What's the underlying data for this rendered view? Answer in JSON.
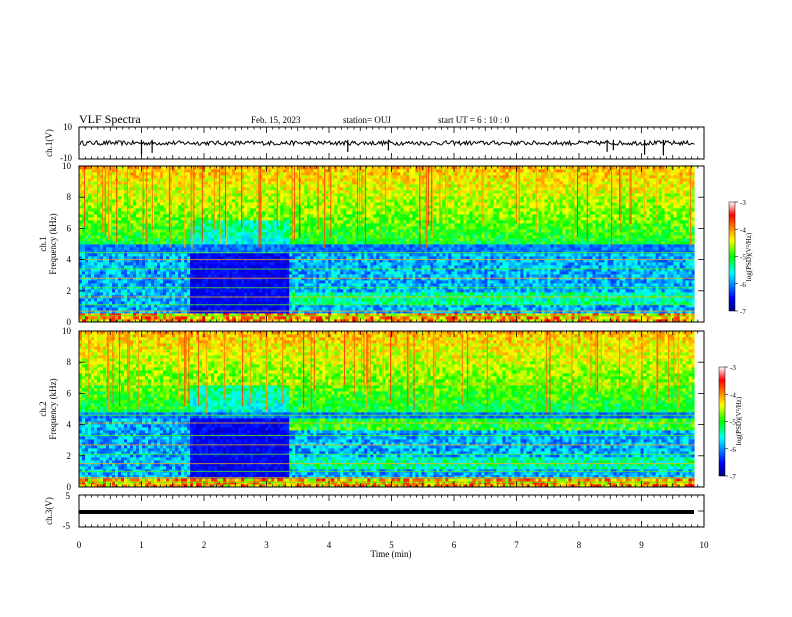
{
  "header": {
    "title": "VLF Spectra",
    "date": "Feb. 15, 2023",
    "station": "station= OUJ",
    "start_ut": "start UT =  6 : 10 : 0"
  },
  "chart_data": {
    "type": "heatmap",
    "xlabel": "Time (min)",
    "xlim": [
      0,
      10
    ],
    "x_ticks": [
      0,
      1,
      2,
      3,
      4,
      5,
      6,
      7,
      8,
      9,
      10
    ],
    "panels": [
      {
        "id": "ch1-waveform",
        "type": "line",
        "ylabel": "ch.1(V)",
        "ylim": [
          -10,
          10
        ],
        "y_ticks": [
          10,
          -10
        ],
        "baseline": 0,
        "amplitude": 1.4,
        "spikes_min": [
          1.0,
          1.17,
          4.3,
          4.95,
          8.45,
          8.55,
          9.05,
          9.35
        ]
      },
      {
        "id": "ch1-spectrogram",
        "type": "heatmap",
        "ylabel_line1": "ch.1",
        "ylabel_line2": "Frequency (kHz)",
        "ylim": [
          0,
          10
        ],
        "y_ticks": [
          0,
          2,
          4,
          6,
          8,
          10
        ],
        "colorbar": {
          "label": "log(PSD)(V²/Hz)",
          "range": [
            -7,
            -3
          ],
          "ticks": [
            "-3",
            "-4",
            "-5",
            "-6",
            "-7"
          ]
        }
      },
      {
        "id": "ch2-spectrogram",
        "type": "heatmap",
        "ylabel_line1": "ch.2",
        "ylabel_line2": "Frequency (kHz)",
        "ylim": [
          0,
          10
        ],
        "y_ticks": [
          0,
          2,
          4,
          6,
          8,
          10
        ],
        "colorbar": {
          "label": "log(PSD)(V²/Hz)",
          "range": [
            -7,
            -3
          ],
          "ticks": [
            "-3",
            "-4",
            "-5",
            "-6",
            "-7"
          ]
        }
      },
      {
        "id": "ch3-waveform",
        "type": "line",
        "ylabel": "ch.3(V)",
        "ylim": [
          -5,
          5
        ],
        "y_ticks": [
          5,
          0,
          -5
        ],
        "baseline": -1.0
      }
    ],
    "data_x_end": 9.85,
    "quiet_interval_min": [
      1.75,
      3.35
    ]
  }
}
